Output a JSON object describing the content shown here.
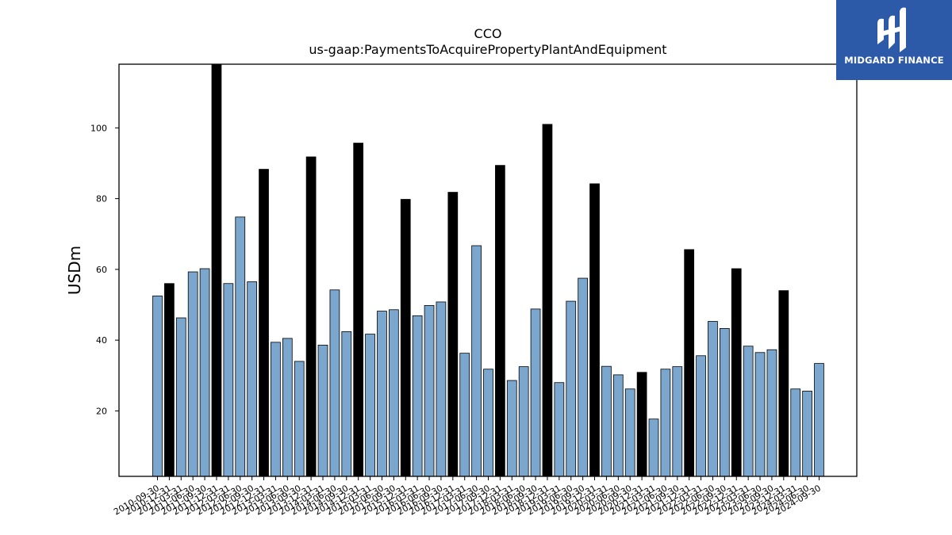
{
  "logo": {
    "text": "MIDGARD FINANCE",
    "icon": "midgard-logo-icon",
    "background": "#2c5aa9"
  },
  "chart_data": {
    "type": "bar",
    "title": "CCO",
    "subtitle": "us-gaap:PaymentsToAcquirePropertyPlantAndEquipment",
    "xlabel": "",
    "ylabel": "USDm",
    "ylim": [
      1.5,
      118
    ],
    "yticks": [
      20,
      40,
      60,
      80,
      100
    ],
    "grid": false,
    "colors": {
      "quarter": "#7ba7cf",
      "fiscal_year_end": "#000000",
      "edge": "#000000"
    },
    "categories": [
      "2010-09-30",
      "2010-12-31",
      "2011-03-31",
      "2011-06-30",
      "2011-09-30",
      "2011-12-31",
      "2012-03-31",
      "2012-06-30",
      "2012-09-30",
      "2012-12-31",
      "2013-03-31",
      "2013-06-30",
      "2013-09-30",
      "2013-12-31",
      "2014-03-31",
      "2014-06-30",
      "2014-09-30",
      "2014-12-31",
      "2015-03-31",
      "2015-06-30",
      "2015-09-30",
      "2015-12-31",
      "2016-03-31",
      "2016-06-30",
      "2016-09-30",
      "2016-12-31",
      "2017-03-31",
      "2017-06-30",
      "2017-09-30",
      "2017-12-31",
      "2018-03-31",
      "2018-06-30",
      "2018-09-30",
      "2018-12-31",
      "2019-03-31",
      "2019-06-30",
      "2019-09-30",
      "2019-12-31",
      "2020-03-31",
      "2020-06-30",
      "2020-09-30",
      "2020-12-31",
      "2021-03-31",
      "2021-06-30",
      "2021-09-30",
      "2021-12-31",
      "2022-03-31",
      "2022-06-30",
      "2022-09-30",
      "2022-12-31",
      "2023-03-31",
      "2023-06-30",
      "2023-09-30",
      "2023-12-31",
      "2024-03-31",
      "2024-06-30",
      "2024-09-30"
    ],
    "values": [
      52.5,
      56.0,
      46.3,
      59.3,
      60.2,
      118.0,
      56.0,
      74.8,
      56.5,
      88.3,
      39.4,
      40.5,
      34.0,
      91.8,
      38.6,
      54.2,
      42.4,
      95.7,
      41.7,
      48.2,
      48.6,
      79.8,
      46.9,
      49.8,
      50.8,
      81.8,
      36.3,
      66.7,
      31.8,
      89.4,
      28.6,
      32.5,
      48.8,
      101.0,
      28.0,
      51.0,
      57.5,
      84.2,
      32.6,
      30.2,
      26.2,
      30.9,
      17.7,
      31.8,
      32.5,
      65.6,
      35.6,
      45.3,
      43.3,
      60.2,
      38.3,
      36.5,
      37.3,
      54.0,
      26.2,
      25.6,
      33.4
    ],
    "highlight": [
      false,
      true,
      false,
      false,
      false,
      true,
      false,
      false,
      false,
      true,
      false,
      false,
      false,
      true,
      false,
      false,
      false,
      true,
      false,
      false,
      false,
      true,
      false,
      false,
      false,
      true,
      false,
      false,
      false,
      true,
      false,
      false,
      false,
      true,
      false,
      false,
      false,
      true,
      false,
      false,
      false,
      true,
      false,
      false,
      false,
      true,
      false,
      false,
      false,
      true,
      false,
      false,
      false,
      true,
      false,
      false,
      false
    ]
  }
}
